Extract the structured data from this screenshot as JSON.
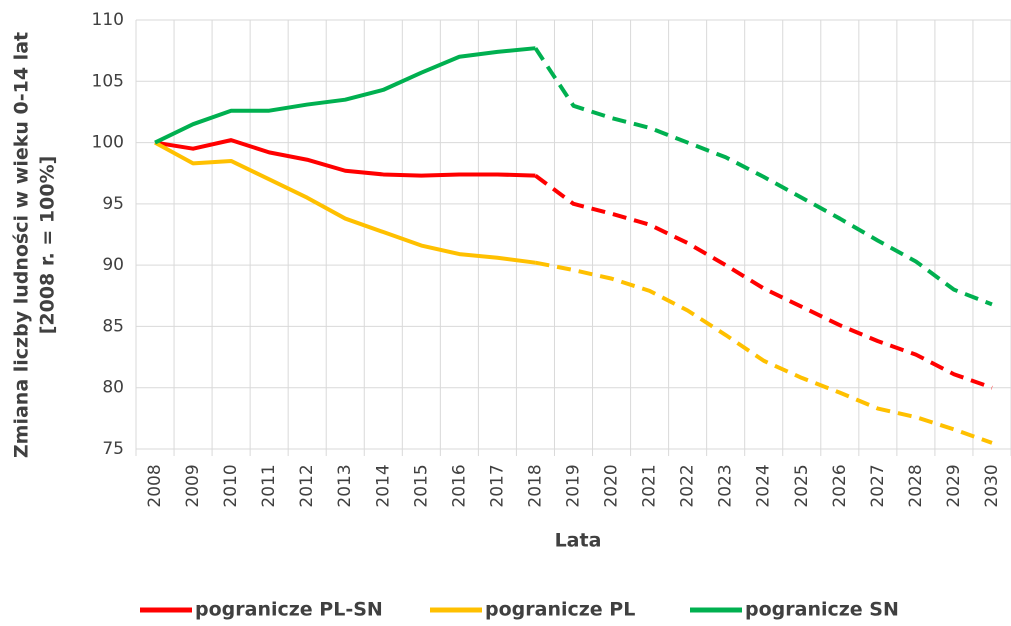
{
  "chart_data": {
    "type": "line",
    "y_label": [
      "Zmiana liczby ludności w wieku 0-14 lat",
      "[2008 r. = 100%]"
    ],
    "x_label": "Lata",
    "categories": [
      "2008",
      "2009",
      "2010",
      "2011",
      "2012",
      "2013",
      "2014",
      "2015",
      "2016",
      "2017",
      "2018",
      "2019",
      "2020",
      "2021",
      "2022",
      "2023",
      "2024",
      "2025",
      "2026",
      "2027",
      "2028",
      "2029",
      "2030"
    ],
    "dashed_from": "2018",
    "series": [
      {
        "name": "pogranicze PL-SN",
        "color": "#ff0000",
        "values": [
          100,
          99.5,
          100.2,
          99.2,
          98.6,
          97.7,
          97.4,
          97.3,
          97.4,
          97.4,
          97.3,
          95.0,
          94.2,
          93.3,
          91.8,
          90.0,
          88.1,
          86.6,
          85.1,
          83.8,
          82.7,
          81.1,
          80.0
        ]
      },
      {
        "name": "pogranicze PL",
        "color": "#ffc000",
        "values": [
          100,
          98.3,
          98.5,
          97.0,
          95.5,
          93.8,
          92.7,
          91.6,
          90.9,
          90.6,
          90.2,
          89.6,
          88.9,
          87.9,
          86.3,
          84.3,
          82.2,
          80.8,
          79.6,
          78.3,
          77.6,
          76.6,
          75.5
        ]
      },
      {
        "name": "pogranicze SN",
        "color": "#00b050",
        "values": [
          100,
          101.5,
          102.6,
          102.6,
          103.1,
          103.5,
          104.3,
          105.7,
          107.0,
          107.4,
          107.7,
          103.0,
          102.0,
          101.2,
          100.0,
          98.8,
          97.2,
          95.5,
          93.8,
          92.0,
          90.3,
          88.0,
          86.8
        ]
      }
    ],
    "ylim": [
      75,
      110
    ],
    "yticks": [
      75,
      80,
      85,
      90,
      95,
      100,
      105,
      110
    ],
    "grid": true
  }
}
